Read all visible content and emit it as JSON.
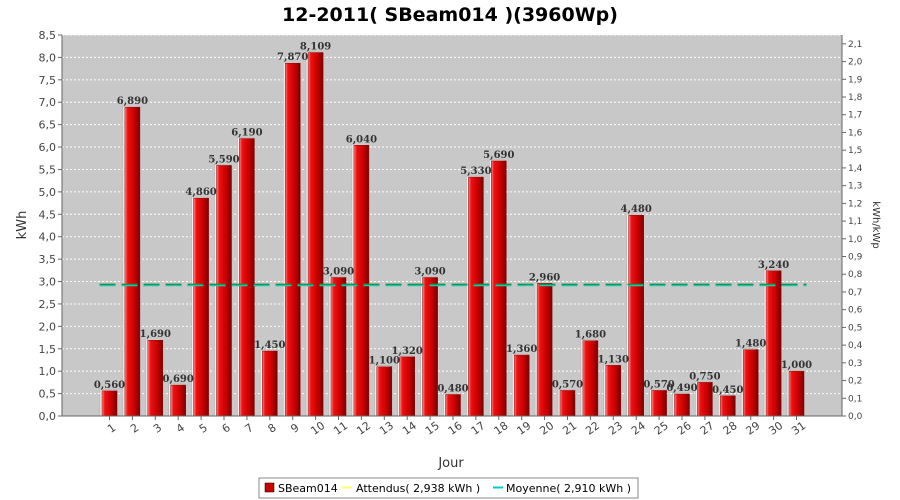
{
  "chart_data": {
    "type": "bar",
    "title": "12-2011( SBeam014 )(3960Wp)",
    "xlabel": "Jour",
    "ylabel": "kWh",
    "y2label": "kWh/kWp",
    "ylim": [
      0,
      8.5
    ],
    "y2lim": [
      0,
      2.15
    ],
    "categories": [
      "1",
      "2",
      "3",
      "4",
      "5",
      "6",
      "7",
      "8",
      "9",
      "10",
      "11",
      "12",
      "13",
      "14",
      "15",
      "16",
      "17",
      "18",
      "19",
      "20",
      "21",
      "22",
      "23",
      "24",
      "25",
      "26",
      "27",
      "28",
      "29",
      "30",
      "31"
    ],
    "series": [
      {
        "name": "SBeam014",
        "color": "#cc0000",
        "values": [
          0.56,
          6.89,
          1.69,
          0.69,
          4.86,
          5.59,
          6.19,
          1.45,
          7.87,
          8.109,
          3.09,
          6.04,
          1.1,
          1.32,
          3.09,
          0.48,
          5.33,
          5.69,
          1.36,
          2.96,
          0.57,
          1.68,
          1.13,
          4.48,
          0.57,
          0.49,
          0.75,
          0.45,
          1.48,
          3.24,
          1.0
        ],
        "labels": [
          "0,560",
          "6,890",
          "1,690",
          "0,690",
          "4,860",
          "5,590",
          "6,190",
          "1,450",
          "7,870",
          "8,109",
          "3,090",
          "6,040",
          "1,100",
          "1,320",
          "3,090",
          "0,480",
          "5,330",
          "5,690",
          "1,360",
          "2,960",
          "0,570",
          "1,680",
          "1,130",
          "4,480",
          "0,570",
          "0,490",
          "0,750",
          "0,450",
          "1,480",
          "3,240",
          "1,000"
        ]
      }
    ],
    "attendus": {
      "label": "Attendus( 2,938 kWh )",
      "value": 2.938,
      "color": "#ffff66"
    },
    "moyenne": {
      "label": "Moyenne( 2,910 kWh )",
      "value": 2.91,
      "color": "#00cccc"
    },
    "yticks": [
      "0,0",
      "0,5",
      "1,0",
      "1,5",
      "2,0",
      "2,5",
      "3,0",
      "3,5",
      "4,0",
      "4,5",
      "5,0",
      "5,5",
      "6,0",
      "6,5",
      "7,0",
      "7,5",
      "8,0",
      "8,5"
    ],
    "y2ticks": [
      "0,0",
      "0,1",
      "0,2",
      "0,3",
      "0,4",
      "0,5",
      "0,6",
      "0,7",
      "0,8",
      "0,9",
      "1,0",
      "1,1",
      "1,2",
      "1,3",
      "1,4",
      "1,5",
      "1,6",
      "1,7",
      "1,8",
      "1,9",
      "2,0",
      "2,1"
    ],
    "grid": true,
    "legend": "bottom"
  }
}
